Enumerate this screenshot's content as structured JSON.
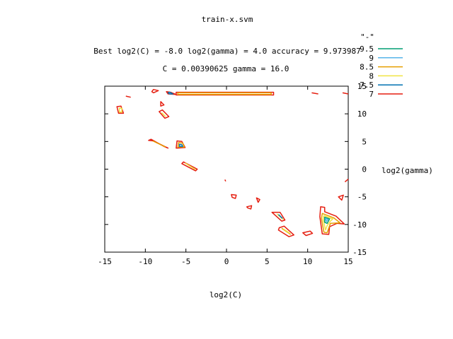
{
  "chart_data": {
    "type": "contour",
    "title": "train-x.svm",
    "subtitle_line1": "Best log2(C) = -8.0  log2(gamma) = 4.0  accuracy = 9.973987",
    "subtitle_line2": "C = 0.00390625  gamma = 16.0",
    "xlabel": "log2(C)",
    "ylabel": "log2(gamma)",
    "xlim": [
      -15,
      15
    ],
    "ylim": [
      -15,
      15
    ],
    "xticks": [
      -15,
      -10,
      -5,
      0,
      5,
      10,
      15
    ],
    "yticks": [
      -15,
      -10,
      -5,
      0,
      5,
      10,
      15
    ],
    "legend_title": "\"-\"",
    "legend_position": "top-right",
    "levels": [
      {
        "label": "9.5",
        "color": "#009e73"
      },
      {
        "label": "9",
        "color": "#56b4e9"
      },
      {
        "label": "8.5",
        "color": "#e69f00"
      },
      {
        "label": "8",
        "color": "#f0e442"
      },
      {
        "label": "7.5",
        "color": "#0072b2"
      },
      {
        "label": "7",
        "color": "#e51e10"
      }
    ],
    "contours": [
      {
        "level": "7",
        "points": [
          [
            -9,
            13.8
          ],
          [
            -8.4,
            14.2
          ],
          [
            -9,
            14.4
          ],
          [
            -9.2,
            14
          ]
        ]
      },
      {
        "level": "7",
        "points": [
          [
            -7.4,
            14
          ],
          [
            -7.2,
            13.6
          ],
          [
            -6.2,
            13.5
          ],
          [
            -6.9,
            13.9
          ]
        ]
      },
      {
        "level": "7.5",
        "points": [
          [
            -7.2,
            13.8
          ],
          [
            -7,
            13.6
          ],
          [
            -6.6,
            13.6
          ],
          [
            -7,
            13.9
          ]
        ]
      },
      {
        "level": "7",
        "points": [
          [
            -6.2,
            13.9
          ],
          [
            5.8,
            13.9
          ],
          [
            5.8,
            13.4
          ],
          [
            -6.2,
            13.4
          ]
        ]
      },
      {
        "level": "8.5",
        "points": [
          [
            -6,
            13.8
          ],
          [
            5.5,
            13.8
          ],
          [
            5.5,
            13.5
          ],
          [
            -6,
            13.5
          ]
        ]
      },
      {
        "level": "7",
        "points": [
          [
            10.5,
            13.8
          ],
          [
            11.3,
            13.6
          ]
        ]
      },
      {
        "level": "7",
        "points": [
          [
            14.3,
            13.8
          ],
          [
            15,
            13.6
          ]
        ]
      },
      {
        "level": "7",
        "points": [
          [
            -12.4,
            13.2
          ],
          [
            -11.8,
            13
          ]
        ]
      },
      {
        "level": "7",
        "points": [
          [
            -8.1,
            12.2
          ],
          [
            -7.7,
            11.6
          ],
          [
            -8.1,
            11.4
          ]
        ]
      },
      {
        "level": "7",
        "points": [
          [
            -13.5,
            11.3
          ],
          [
            -13,
            11.4
          ],
          [
            -12.7,
            10.1
          ],
          [
            -13.3,
            10.1
          ]
        ]
      },
      {
        "level": "8",
        "points": [
          [
            -13.2,
            11
          ],
          [
            -12.9,
            11
          ],
          [
            -12.9,
            10.3
          ],
          [
            -13.2,
            10.3
          ]
        ]
      },
      {
        "level": "7",
        "points": [
          [
            -8.3,
            10.4
          ],
          [
            -7.9,
            10.7
          ],
          [
            -7.1,
            9.5
          ],
          [
            -7.6,
            9.2
          ]
        ]
      },
      {
        "level": "8",
        "points": [
          [
            -8,
            10.2
          ],
          [
            -7.5,
            9.5
          ]
        ]
      },
      {
        "level": "7",
        "points": [
          [
            -9.3,
            5.4
          ],
          [
            -7.7,
            4.1
          ],
          [
            -7.2,
            3.8
          ],
          [
            -9,
            5.1
          ],
          [
            -9.6,
            5.2
          ]
        ]
      },
      {
        "level": "8.5",
        "points": [
          [
            -9.1,
            5.1
          ],
          [
            -7.5,
            4
          ]
        ]
      },
      {
        "level": "7",
        "points": [
          [
            -6.1,
            5.1
          ],
          [
            -5.5,
            5
          ],
          [
            -5.1,
            3.9
          ],
          [
            -6.2,
            3.8
          ]
        ]
      },
      {
        "level": "8.5",
        "points": [
          [
            -5.9,
            4.8
          ],
          [
            -5.4,
            4.7
          ],
          [
            -5.2,
            4
          ],
          [
            -6,
            4
          ]
        ]
      },
      {
        "level": "7.5",
        "points": [
          [
            -5.8,
            4.5
          ],
          [
            -5.5,
            4.4
          ],
          [
            -5.4,
            4.1
          ],
          [
            -5.8,
            4.1
          ]
        ]
      },
      {
        "level": "7",
        "points": [
          [
            -5.3,
            1.3
          ],
          [
            -3.6,
            0
          ],
          [
            -3.8,
            -0.3
          ],
          [
            -5.5,
            1
          ]
        ]
      },
      {
        "level": "8",
        "points": [
          [
            -5.1,
            1.1
          ],
          [
            -3.8,
            -0.1
          ]
        ]
      },
      {
        "level": "7",
        "points": [
          [
            -0.2,
            -1.9
          ],
          [
            -0.1,
            -2.2
          ]
        ]
      },
      {
        "level": "7",
        "points": [
          [
            0.6,
            -4.6
          ],
          [
            1.2,
            -4.7
          ],
          [
            1.1,
            -5.3
          ],
          [
            0.7,
            -5.1
          ]
        ]
      },
      {
        "level": "7",
        "points": [
          [
            3.7,
            -5.2
          ],
          [
            4.1,
            -5.5
          ],
          [
            3.9,
            -6
          ]
        ]
      },
      {
        "level": "7",
        "points": [
          [
            2.5,
            -6.8
          ],
          [
            3.1,
            -6.6
          ],
          [
            3,
            -7.2
          ],
          [
            2.6,
            -7
          ]
        ]
      },
      {
        "level": "7",
        "points": [
          [
            5.6,
            -7.8
          ],
          [
            6.6,
            -7.8
          ],
          [
            7.2,
            -9.2
          ],
          [
            6.8,
            -9.4
          ]
        ]
      },
      {
        "level": "8",
        "points": [
          [
            6.2,
            -8.1
          ],
          [
            7,
            -9.1
          ]
        ]
      },
      {
        "level": "7.5",
        "points": [
          [
            6.4,
            -8.2
          ],
          [
            6.9,
            -8.9
          ]
        ]
      },
      {
        "level": "7",
        "points": [
          [
            6.5,
            -10.6
          ],
          [
            7.1,
            -10.3
          ],
          [
            8.3,
            -11.9
          ],
          [
            7.7,
            -12.2
          ],
          [
            6.4,
            -11
          ]
        ]
      },
      {
        "level": "8.5",
        "points": [
          [
            6.8,
            -10.7
          ],
          [
            7.9,
            -11.8
          ]
        ]
      },
      {
        "level": "8",
        "points": [
          [
            7,
            -10.8
          ],
          [
            7.8,
            -11.6
          ]
        ]
      },
      {
        "level": "7",
        "points": [
          [
            9.4,
            -11.5
          ],
          [
            10.3,
            -11.2
          ],
          [
            10.6,
            -11.6
          ],
          [
            9.8,
            -12
          ]
        ]
      },
      {
        "level": "7",
        "points": [
          [
            11.6,
            -6.8
          ],
          [
            12.1,
            -6.9
          ],
          [
            12.1,
            -7.7
          ],
          [
            13.5,
            -8.5
          ],
          [
            14.5,
            -9.9
          ],
          [
            13.6,
            -9.8
          ],
          [
            12.7,
            -10.4
          ],
          [
            12.6,
            -11.8
          ],
          [
            11.8,
            -11.7
          ],
          [
            11.5,
            -8.6
          ]
        ]
      },
      {
        "level": "8.5",
        "points": [
          [
            11.8,
            -8
          ],
          [
            13.2,
            -8.8
          ],
          [
            14,
            -9.7
          ],
          [
            12.8,
            -9.8
          ],
          [
            12.4,
            -11.5
          ],
          [
            12,
            -11.4
          ],
          [
            11.7,
            -8.9
          ]
        ]
      },
      {
        "level": "8",
        "points": [
          [
            12,
            -8.4
          ],
          [
            13.1,
            -9
          ],
          [
            12.8,
            -9.4
          ],
          [
            12.4,
            -10.2
          ],
          [
            12.2,
            -11
          ],
          [
            11.9,
            -9
          ]
        ]
      },
      {
        "level": "9.5",
        "points": [
          [
            12.1,
            -8.7
          ],
          [
            12.7,
            -9
          ],
          [
            12.4,
            -9.8
          ],
          [
            12.1,
            -9.6
          ]
        ]
      },
      {
        "level": "9",
        "points": [
          [
            12.2,
            -8.9
          ],
          [
            12.5,
            -9.1
          ],
          [
            12.3,
            -9.5
          ]
        ]
      },
      {
        "level": "7",
        "points": [
          [
            13.8,
            -5
          ],
          [
            14.4,
            -4.7
          ],
          [
            14.2,
            -5.6
          ]
        ]
      },
      {
        "level": "7",
        "points": [
          [
            14.6,
            -2.3
          ],
          [
            15,
            -1.8
          ]
        ]
      }
    ]
  }
}
